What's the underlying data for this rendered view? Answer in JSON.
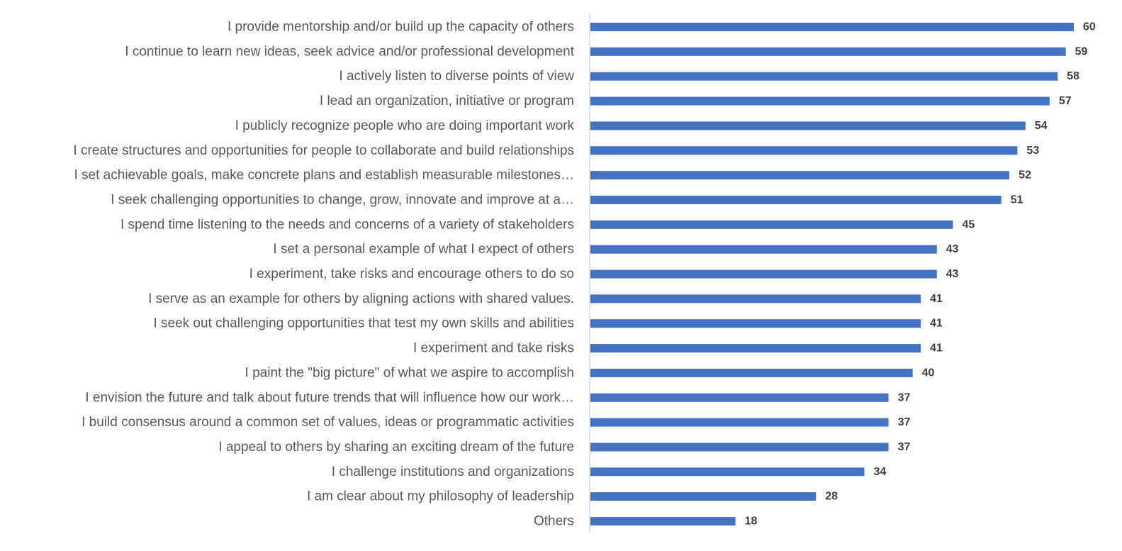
{
  "chart_data": {
    "type": "bar",
    "orientation": "horizontal",
    "title": "",
    "xlabel": "",
    "ylabel": "",
    "grid": false,
    "legend": "none",
    "bar_color": "#4472C4",
    "xlim": [
      0,
      60
    ],
    "categories": [
      "I provide mentorship and/or build up the capacity of others",
      "I continue to learn new ideas, seek advice and/or professional development",
      "I actively listen to diverse points of view",
      "I lead an organization, initiative or program",
      "I publicly recognize people who are doing important work",
      "I create structures and opportunities for people to collaborate and build relationships",
      "I set achievable goals, make concrete plans and establish measurable milestones…",
      "I seek challenging opportunities to change, grow, innovate and improve at a…",
      "I spend time listening to the needs and concerns of a variety of stakeholders",
      "I set a personal example of what I expect of others",
      "I experiment, take risks and encourage others to do so",
      "I serve as an example for others by aligning actions with shared values.",
      "I seek out challenging opportunities that test my own skills and abilities",
      "I experiment and take risks",
      "I paint the \"big picture\" of what we aspire to accomplish",
      "I envision the future and talk about future trends that will influence how our work…",
      "I build consensus around a common set of values, ideas or programmatic activities",
      "I appeal to others by sharing an exciting dream of the future",
      "I challenge institutions and organizations",
      "I am clear about my philosophy of leadership",
      "Others"
    ],
    "values": [
      60,
      59,
      58,
      57,
      54,
      53,
      52,
      51,
      45,
      43,
      43,
      41,
      41,
      41,
      40,
      37,
      37,
      37,
      34,
      28,
      18
    ]
  }
}
